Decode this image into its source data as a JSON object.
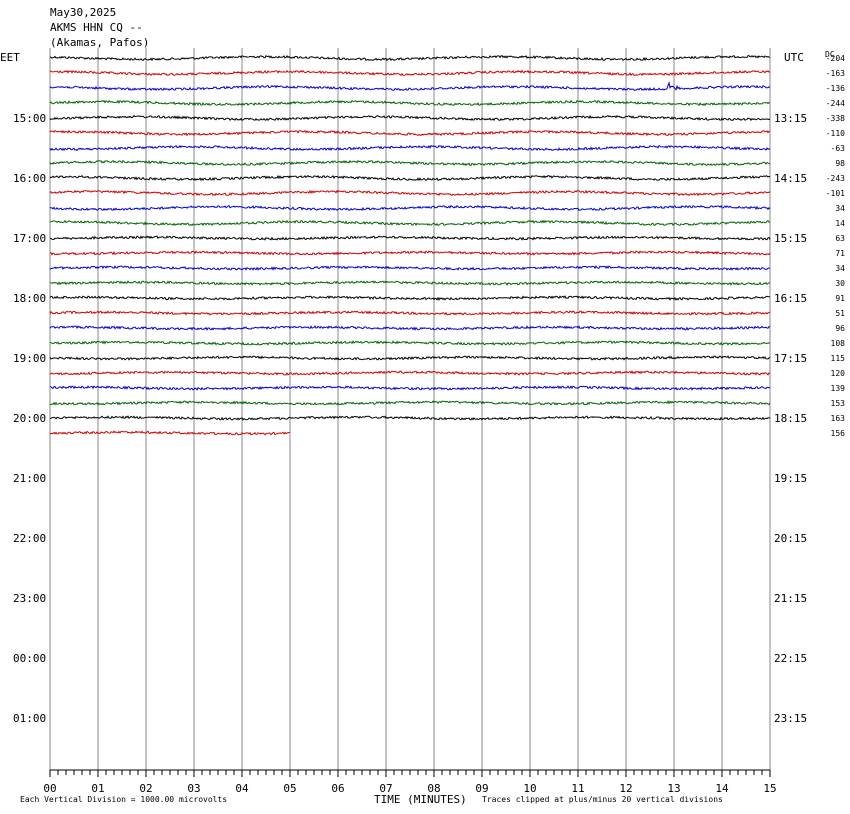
{
  "header": {
    "date": "May30,2025",
    "station": "AKMS HHN CQ --",
    "location": "(Akamas, Pafos)"
  },
  "axis_labels": {
    "left_timezone": "EET",
    "right_timezone": "UTC",
    "dc_label": "DC",
    "x_title": "TIME (MINUTES)"
  },
  "footer": {
    "scale_note": "Each Vertical Division = 1000.00 microvolts",
    "clip_note": "Traces clipped at plus/minus 20 vertical divisions"
  },
  "colors": {
    "black": "#000000",
    "red": "#cc0000",
    "blue": "#0000cc",
    "green": "#006600",
    "grid": "#888888"
  },
  "chart_data": {
    "type": "line",
    "title": "AKMS HHN CQ --",
    "subtitle": "(Akamas, Pafos)",
    "xlabel": "TIME (MINUTES)",
    "xlim": [
      0,
      15
    ],
    "x_ticks": [
      "00",
      "01",
      "02",
      "03",
      "04",
      "05",
      "06",
      "07",
      "08",
      "09",
      "10",
      "11",
      "12",
      "13",
      "14",
      "15"
    ],
    "rows_per_hour": 4,
    "left_hour_labels": [
      "15:00",
      "16:00",
      "17:00",
      "18:00",
      "19:00",
      "20:00",
      "21:00",
      "22:00",
      "23:00",
      "00:00",
      "01:00"
    ],
    "right_hour_labels": [
      "13:15",
      "14:15",
      "15:15",
      "16:15",
      "17:15",
      "18:15",
      "19:15",
      "20:15",
      "21:15",
      "22:15",
      "23:15"
    ],
    "trace_colors": [
      "black",
      "red",
      "blue",
      "green"
    ],
    "dc_offsets": [
      -204,
      -163,
      -136,
      -244,
      -338,
      -110,
      -63,
      98,
      -243,
      -101,
      34,
      14,
      63,
      71,
      34,
      30,
      91,
      51,
      96,
      108,
      115,
      120,
      139,
      153,
      163,
      156
    ],
    "last_trace_end_minute": 5.0,
    "event": {
      "trace_index": 2,
      "minute": 12.9
    }
  }
}
